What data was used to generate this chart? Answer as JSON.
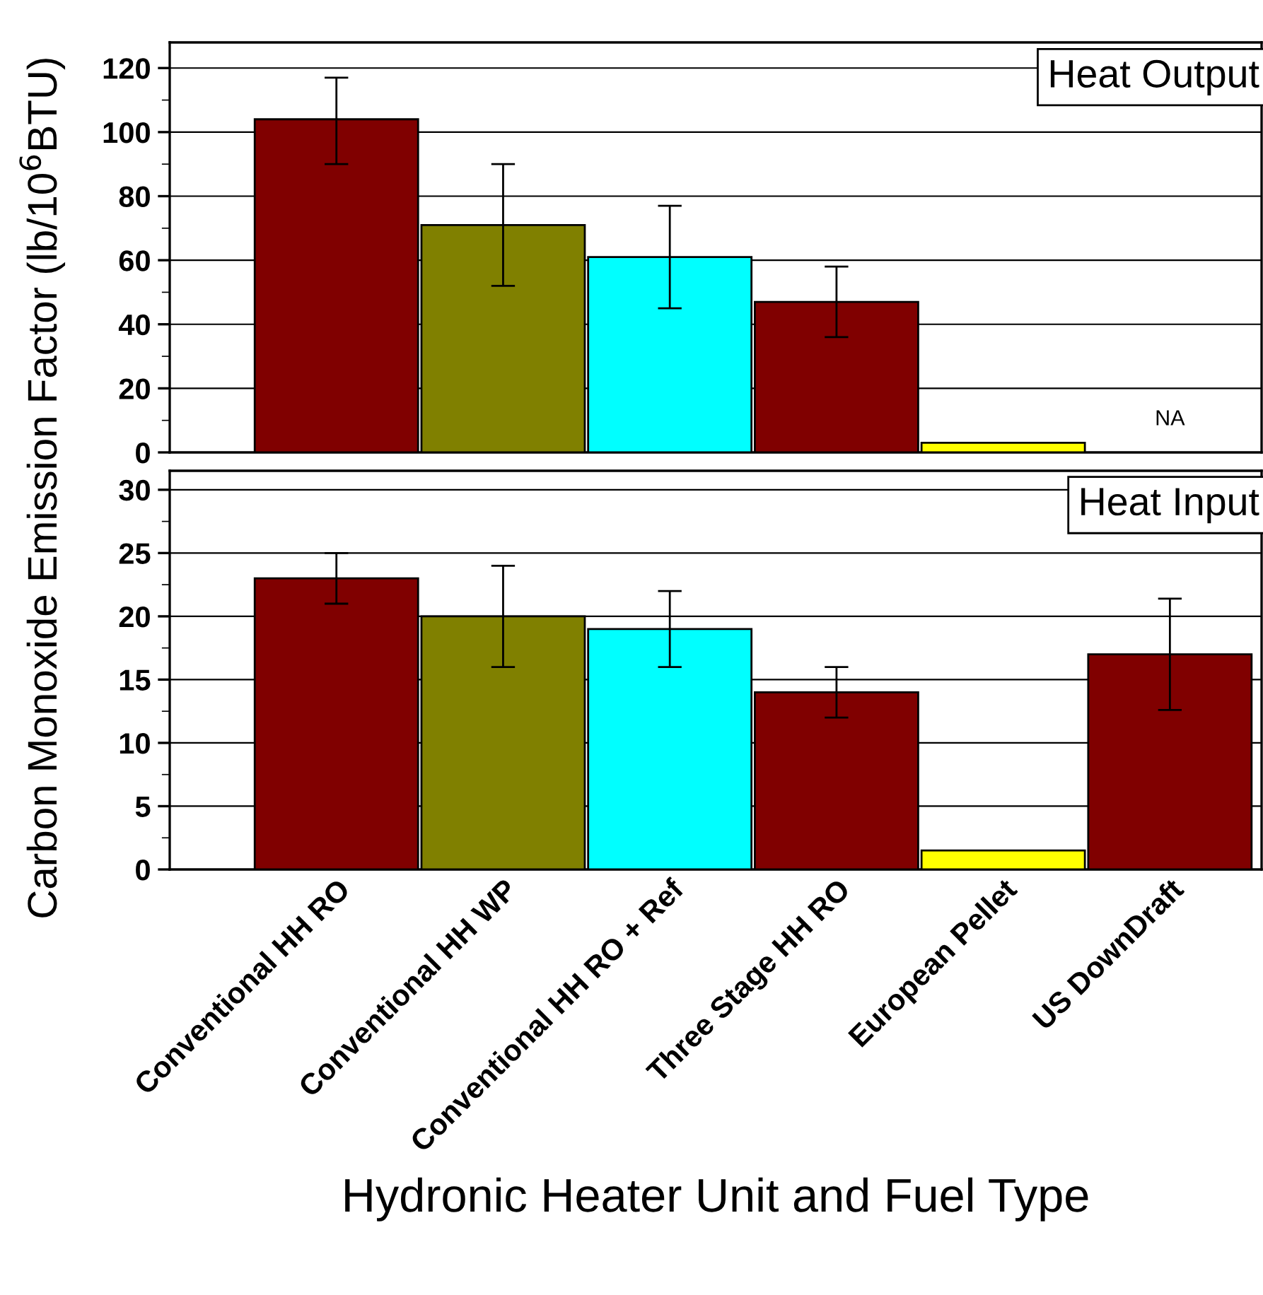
{
  "chart_data": [
    {
      "type": "bar",
      "categories": [
        null,
        null,
        null,
        null,
        null,
        null
      ],
      "values": [
        104,
        71,
        61,
        47,
        3,
        null
      ],
      "colors": [
        "#800000",
        "#808000",
        "#00ffff",
        "#800000",
        "#ffff00",
        "#800000"
      ],
      "errors": [
        [
          90,
          117
        ],
        [
          52,
          90
        ],
        [
          45,
          77
        ],
        [
          36,
          58
        ],
        null,
        null
      ],
      "ylabel": "Carbon Monoxide Emission Factor (lb/10$^{6}$BTU)",
      "ylim": [
        0,
        128
      ],
      "yticks": [
        0,
        20,
        40,
        60,
        80,
        100,
        120
      ],
      "grid": "y",
      "tick_labels": "y",
      "annotations": [
        "Heat Output",
        "NA"
      ]
    },
    {
      "type": "bar",
      "categories": [
        "Conventional HH RO",
        "Conventional HH WP",
        "Conventional HH RO + Ref",
        "Three Stage HH RO",
        "European Pellet",
        "US DownDraft"
      ],
      "values": [
        23,
        20,
        19,
        14,
        1.5,
        17
      ],
      "colors": [
        "#800000",
        "#808000",
        "#00ffff",
        "#800000",
        "#ffff00",
        "#800000"
      ],
      "errors": [
        [
          21,
          25
        ],
        [
          16,
          24
        ],
        [
          16,
          22
        ],
        [
          12,
          16
        ],
        null,
        [
          12.6,
          21.4
        ]
      ],
      "xlabel": "Hydronic Heater Unit and Fuel Type",
      "ylim": [
        0,
        31.5
      ],
      "yticks": [
        0,
        5,
        10,
        15,
        20,
        25,
        30
      ],
      "grid": "y",
      "annotations": [
        "Heat Input"
      ]
    }
  ]
}
